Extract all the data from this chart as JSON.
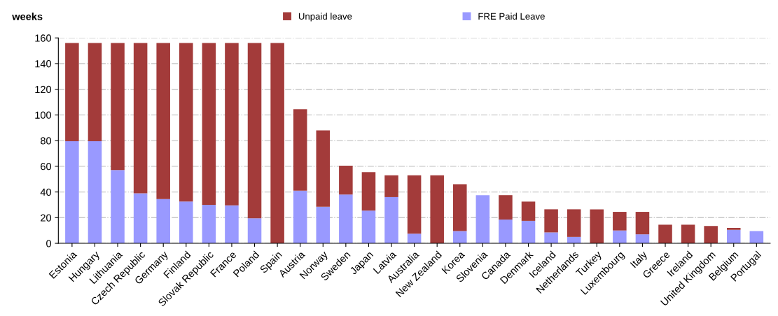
{
  "chart_data": {
    "type": "bar",
    "stacked": true,
    "ylabel": "weeks",
    "categories": [
      "Estonia",
      "Hungary",
      "Lithuania",
      "Czech Republic",
      "Germany",
      "Finland",
      "Slovak Republic",
      "France",
      "Poland",
      "Spain",
      "Austria",
      "Norway",
      "Sweden",
      "Japan",
      "Latvia",
      "Australia",
      "New Zealand",
      "Korea",
      "Slovenia",
      "Canada",
      "Denmark",
      "Iceland",
      "Netherlands",
      "Turkey",
      "Luxembourg",
      "Italy",
      "Greece",
      "Ireland",
      "United Kingdom",
      "Belgium",
      "Portugal"
    ],
    "series": [
      {
        "name": "FRE Paid Leave",
        "color": "#9999ff",
        "values": [
          79.5,
          79.5,
          57,
          39,
          34.5,
          32.5,
          30,
          29.5,
          19.5,
          0,
          41,
          28.5,
          38,
          25.5,
          36,
          7.5,
          0,
          9.5,
          37.5,
          18.5,
          17.5,
          8.5,
          5,
          0,
          10,
          7,
          0,
          0,
          0,
          10.5,
          9.5
        ]
      },
      {
        "name": "Unpaid leave",
        "color": "#a33b3a",
        "values": [
          76.5,
          76.5,
          99,
          117,
          121.5,
          123.5,
          126,
          126.5,
          136.5,
          156,
          63.5,
          59.5,
          22.5,
          30,
          17,
          45.5,
          53,
          36.5,
          0,
          19,
          15,
          18,
          21.5,
          26.5,
          14.5,
          17.5,
          14.5,
          14.5,
          13.5,
          1.5,
          0
        ]
      }
    ],
    "ylim": [
      0,
      160
    ],
    "yticks": [
      0,
      20,
      40,
      60,
      80,
      100,
      120,
      140,
      160
    ],
    "grid": "y",
    "legend": "top"
  }
}
